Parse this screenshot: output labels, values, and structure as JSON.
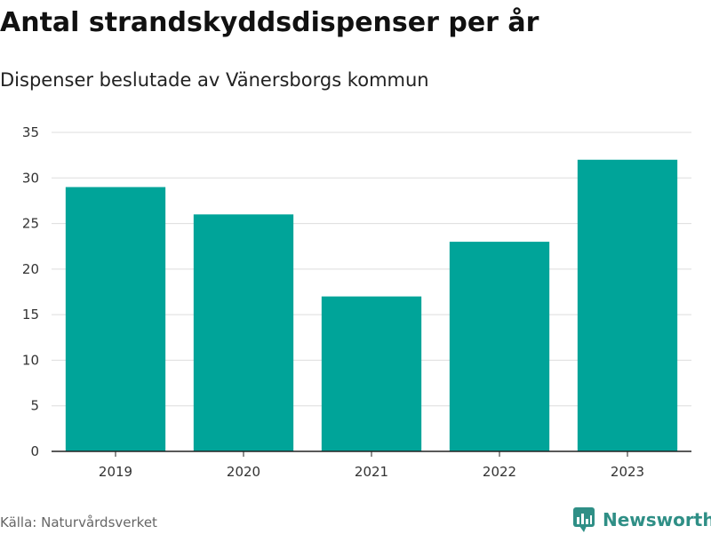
{
  "header": {
    "title": "Antal strandskyddsdispenser per år",
    "subtitle": "Dispenser beslutade av Vänersborgs kommun"
  },
  "footer": {
    "source": "Källa: Naturvårdsverket",
    "brand": "Newsworthy",
    "brand_icon": "bar-chart-logo-icon"
  },
  "colors": {
    "bar": "#00a499",
    "grid": "#dddddd",
    "axis": "#222222",
    "brand": "#2f8f86"
  },
  "chart_data": {
    "type": "bar",
    "title": "Antal strandskyddsdispenser per år",
    "subtitle": "Dispenser beslutade av Vänersborgs kommun",
    "xlabel": "",
    "ylabel": "",
    "categories": [
      "2019",
      "2020",
      "2021",
      "2022",
      "2023"
    ],
    "values": [
      29,
      26,
      17,
      23,
      32
    ],
    "ylim": [
      0,
      35
    ],
    "yticks": [
      0,
      5,
      10,
      15,
      20,
      25,
      30,
      35
    ],
    "grid": true,
    "legend": "none"
  }
}
